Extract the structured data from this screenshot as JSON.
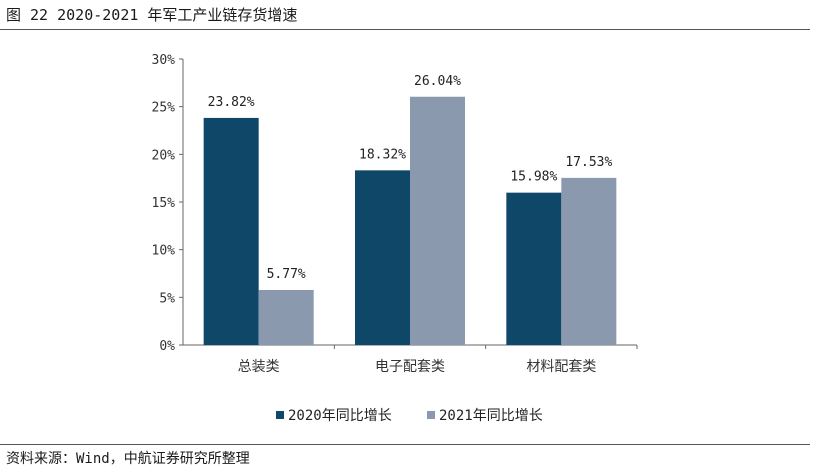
{
  "header": {
    "title": "图 22 2020-2021 年军工产业链存货增速"
  },
  "footer": {
    "source": "资料来源：Wind，中航证券研究所整理"
  },
  "colors": {
    "series_2020": "#0f4769",
    "series_2021": "#8a99ad"
  },
  "chart_data": {
    "type": "bar",
    "title": "图 22 2020-2021 年军工产业链存货增速",
    "categories": [
      "总装类",
      "电子配套类",
      "材料配套类"
    ],
    "series": [
      {
        "name": "2020年同比增长",
        "values": [
          23.82,
          18.32,
          15.98
        ],
        "labels": [
          "23.82%",
          "18.32%",
          "15.98%"
        ]
      },
      {
        "name": "2021年同比增长",
        "values": [
          5.77,
          26.04,
          17.53
        ],
        "labels": [
          "5.77%",
          "26.04%",
          "17.53%"
        ]
      }
    ],
    "ylim": [
      0,
      30
    ],
    "yticks": [
      0,
      5,
      10,
      15,
      20,
      25,
      30
    ],
    "ytick_labels": [
      "0%",
      "5%",
      "10%",
      "15%",
      "20%",
      "25%",
      "30%"
    ],
    "xlabel": "",
    "ylabel": "",
    "grid": false,
    "legend": "bottom-center"
  }
}
